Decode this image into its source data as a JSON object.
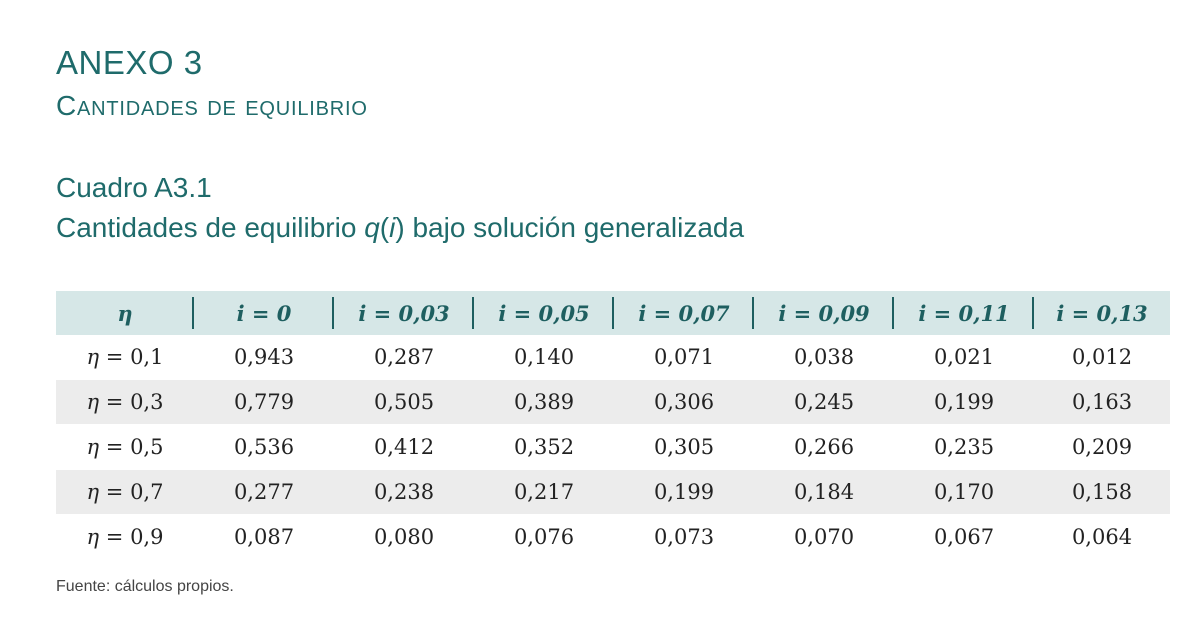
{
  "heading": {
    "annex": "ANEXO 3",
    "subtitle": "Cantidades de equilibrio"
  },
  "table": {
    "label": "Cuadro A3.1",
    "caption_prefix": "Cantidades de equilibrio ",
    "caption_q": "q",
    "caption_paren_open": "(",
    "caption_i": "i",
    "caption_paren_close": ")",
    "caption_suffix": " bajo solución generalizada",
    "corner_header": "η",
    "columns": [
      "i = 0",
      "i = 0,03",
      "i = 0,05",
      "i = 0,07",
      "i = 0,09",
      "i = 0,11",
      "i = 0,13"
    ],
    "rows": [
      {
        "eta": "η",
        "eq": " = 0,1",
        "values": [
          "0,943",
          "0,287",
          "0,140",
          "0,071",
          "0,038",
          "0,021",
          "0,012"
        ]
      },
      {
        "eta": "η",
        "eq": " = 0,3",
        "values": [
          "0,779",
          "0,505",
          "0,389",
          "0,306",
          "0,245",
          "0,199",
          "0,163"
        ]
      },
      {
        "eta": "η",
        "eq": " = 0,5",
        "values": [
          "0,536",
          "0,412",
          "0,352",
          "0,305",
          "0,266",
          "0,235",
          "0,209"
        ]
      },
      {
        "eta": "η",
        "eq": " = 0,7",
        "values": [
          "0,277",
          "0,238",
          "0,217",
          "0,199",
          "0,184",
          "0,170",
          "0,158"
        ]
      },
      {
        "eta": "η",
        "eq": " = 0,9",
        "values": [
          "0,087",
          "0,080",
          "0,076",
          "0,073",
          "0,070",
          "0,067",
          "0,064"
        ]
      }
    ]
  },
  "source": "Fuente: cálculos propios.",
  "colors": {
    "accent_text": "#1f6b6b",
    "header_bg": "#d6e7e7",
    "stripe_bg": "#ececec"
  }
}
